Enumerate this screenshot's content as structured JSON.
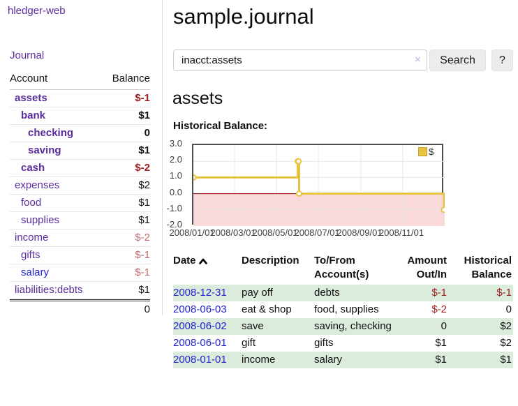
{
  "app": {
    "name": "hledger-web"
  },
  "sidebar": {
    "journal_label": "Journal",
    "account_header": "Account",
    "balance_header": "Balance",
    "accounts": [
      {
        "name": "assets",
        "balance": "$-1",
        "level": 1,
        "bold": true,
        "name_color": "purple",
        "balance_color": "neg"
      },
      {
        "name": "bank",
        "balance": "$1",
        "level": 2,
        "bold": true,
        "name_color": "purple",
        "balance_color": "black"
      },
      {
        "name": "checking",
        "balance": "0",
        "level": 3,
        "bold": true,
        "name_color": "purple",
        "balance_color": "black"
      },
      {
        "name": "saving",
        "balance": "$1",
        "level": 3,
        "bold": true,
        "name_color": "purple",
        "balance_color": "black"
      },
      {
        "name": "cash",
        "balance": "$-2",
        "level": 2,
        "bold": true,
        "name_color": "purple",
        "balance_color": "neg"
      },
      {
        "name": "expenses",
        "balance": "$2",
        "level": 1,
        "bold": false,
        "name_color": "purple",
        "balance_color": "black"
      },
      {
        "name": "food",
        "balance": "$1",
        "level": 2,
        "bold": false,
        "name_color": "purple",
        "balance_color": "black"
      },
      {
        "name": "supplies",
        "balance": "$1",
        "level": 2,
        "bold": false,
        "name_color": "purple",
        "balance_color": "black"
      },
      {
        "name": "income",
        "balance": "$-2",
        "level": 1,
        "bold": false,
        "name_color": "purple",
        "balance_color": "neg-dim"
      },
      {
        "name": "gifts",
        "balance": "$-1",
        "level": 2,
        "bold": false,
        "name_color": "purple",
        "balance_color": "neg-dim"
      },
      {
        "name": "salary",
        "balance": "$-1",
        "level": 2,
        "bold": false,
        "name_color": "blue",
        "balance_color": "neg-dim"
      },
      {
        "name": "liabilities:debts",
        "balance": "$1",
        "level": 1,
        "bold": false,
        "name_color": "purple",
        "balance_color": "black"
      }
    ],
    "total": "0"
  },
  "header": {
    "title": "sample.journal"
  },
  "search": {
    "value": "inacct:assets",
    "clear_icon": "×",
    "button_label": "Search",
    "help_label": "?"
  },
  "main": {
    "account_title": "assets",
    "chart_label": "Historical Balance:"
  },
  "chart_data": {
    "type": "line",
    "step": true,
    "title": "Historical Balance:",
    "series": [
      {
        "name": "$",
        "color": "#e8c342",
        "points": [
          [
            "2008-01-01",
            1
          ],
          [
            "2008-06-01",
            2
          ],
          [
            "2008-06-02",
            2
          ],
          [
            "2008-06-03",
            0
          ],
          [
            "2008-12-31",
            -1
          ]
        ]
      }
    ],
    "x_range": [
      "2008-01-01",
      "2009-01-01"
    ],
    "ylim": [
      -2,
      3
    ],
    "y_ticks": [
      3,
      2,
      1,
      0,
      -1,
      -2
    ],
    "x_tick_labels": [
      "2008/01/01",
      "2008/03/01",
      "2008/05/01",
      "2008/07/01",
      "2008/09/01",
      "2008/11/01"
    ],
    "grid": true,
    "negative_fill": "#f9d9d9",
    "zero_line_color": "#8b0000",
    "legend": {
      "label": "$",
      "position": "top-right",
      "swatch_color": "#e8c342"
    }
  },
  "register": {
    "headers": {
      "date": "Date",
      "sort_icon": "chevron-up-icon",
      "description": "Description",
      "accounts": [
        "To/From",
        "Account(s)"
      ],
      "amount": [
        "Amount",
        "Out/In"
      ],
      "balance": [
        "Historical",
        "Balance"
      ]
    },
    "rows": [
      {
        "date": "2008-12-31",
        "description": "pay off",
        "accounts": "debts",
        "amount": "$-1",
        "balance": "$-1"
      },
      {
        "date": "2008-06-03",
        "description": "eat & shop",
        "accounts": "food, supplies",
        "amount": "$-2",
        "balance": "0"
      },
      {
        "date": "2008-06-02",
        "description": "save",
        "accounts": "saving, checking",
        "amount": "0",
        "balance": "$2"
      },
      {
        "date": "2008-06-01",
        "description": "gift",
        "accounts": "gifts",
        "amount": "$1",
        "balance": "$2"
      },
      {
        "date": "2008-01-01",
        "description": "income",
        "accounts": "salary",
        "amount": "$1",
        "balance": "$1"
      }
    ]
  }
}
